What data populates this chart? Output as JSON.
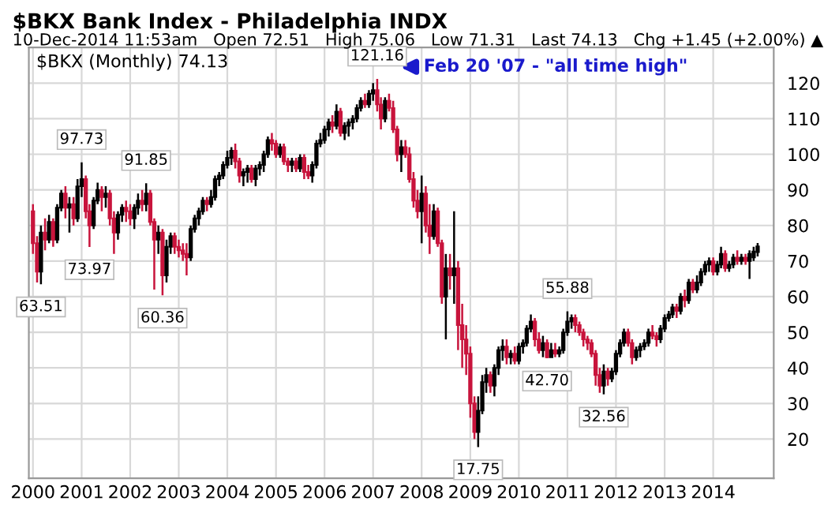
{
  "chart_data": {
    "type": "candlestick",
    "title": "$BKX Bank Index - Philadelphia INDX",
    "subtitle": "10-Dec-2014 11:53am   Open 72.51   High 75.06   Low 71.31   Last 74.13   Chg +1.45 (+2.00%) ▲",
    "annotations": [
      "$BKX (Monthly) 74.13",
      {
        "text": "63.51",
        "x": "2000-03",
        "y": 63.51
      },
      {
        "text": "97.73",
        "x": "2001-01",
        "y": 97.73
      },
      {
        "text": "73.97",
        "x": "2001-03",
        "y": 73.97
      },
      {
        "text": "91.85",
        "x": "2002-05",
        "y": 91.85
      },
      {
        "text": "60.36",
        "x": "2002-09",
        "y": 60.36
      },
      {
        "text": "121.16",
        "x": "2007-02",
        "y": 121.16
      },
      "Feb 20 '07 - \"all time high\"",
      {
        "text": "17.75",
        "x": "2009-03",
        "y": 17.75
      },
      {
        "text": "42.70",
        "x": "2010-08",
        "y": 42.7
      },
      {
        "text": "55.88",
        "x": "2011-01",
        "y": 55.88
      },
      {
        "text": "32.56",
        "x": "2011-10",
        "y": 32.56
      }
    ],
    "colors": [
      "#c8143c",
      "#c8143c",
      "#000000",
      "#c8143c",
      "#000000",
      "#c8143c",
      "#000000",
      "#000000",
      "#c8143c",
      "#000000",
      "#c8143c",
      "#000000",
      "#000000",
      "#c8143c",
      "#c8143c",
      "#000000",
      "#000000",
      "#c8143c",
      "#000000",
      "#c8143c",
      "#c8143c",
      "#000000",
      "#000000",
      "#c8143c",
      "#c8143c",
      "#000000",
      "#000000",
      "#c8143c",
      "#000000",
      "#c8143c",
      "#c8143c",
      "#000000",
      "#c8143c",
      "#000000",
      "#000000",
      "#c8143c",
      "#c8143c",
      "#c8143c",
      "#c8143c",
      "#000000",
      "#000000",
      "#000000",
      "#000000",
      "#c8143c",
      "#000000",
      "#000000",
      "#000000",
      "#000000",
      "#000000",
      "#000000",
      "#c8143c",
      "#c8143c",
      "#000000",
      "#000000",
      "#c8143c",
      "#000000",
      "#000000",
      "#000000",
      "#000000",
      "#c8143c",
      "#c8143c",
      "#000000",
      "#c8143c",
      "#c8143c",
      "#000000",
      "#c8143c",
      "#000000",
      "#c8143c",
      "#c8143c",
      "#000000",
      "#000000",
      "#000000",
      "#000000",
      "#000000",
      "#c8143c",
      "#000000",
      "#c8143c",
      "#000000",
      "#000000",
      "#000000",
      "#000000",
      "#000000",
      "#c8143c",
      "#000000",
      "#000000",
      "#c8143c",
      "#c8143c",
      "#000000",
      "#c8143c",
      "#c8143c",
      "#c8143c",
      "#000000",
      "#c8143c",
      "#c8143c",
      "#c8143c",
      "#c8143c",
      "#000000",
      "#c8143c",
      "#c8143c",
      "#000000",
      "#c8143c",
      "#c8143c",
      "#000000",
      "#c8143c",
      "#000000",
      "#c8143c",
      "#c8143c",
      "#c8143c",
      "#c8143c",
      "#c8143c",
      "#000000",
      "#000000",
      "#000000",
      "#c8143c",
      "#000000",
      "#000000",
      "#000000",
      "#c8143c",
      "#000000",
      "#c8143c",
      "#000000",
      "#000000",
      "#000000",
      "#000000",
      "#c8143c",
      "#c8143c",
      "#000000",
      "#c8143c",
      "#000000",
      "#c8143c",
      "#000000",
      "#000000",
      "#000000",
      "#000000",
      "#c8143c",
      "#c8143c",
      "#c8143c",
      "#c8143c",
      "#c8143c",
      "#c8143c",
      "#c8143c",
      "#000000",
      "#c8143c",
      "#000000",
      "#000000",
      "#000000",
      "#000000",
      "#c8143c",
      "#c8143c",
      "#000000",
      "#000000",
      "#000000",
      "#000000",
      "#c8143c",
      "#c8143c",
      "#000000",
      "#000000",
      "#000000",
      "#000000",
      "#c8143c",
      "#000000",
      "#c8143c",
      "#000000",
      "#c8143c",
      "#000000",
      "#000000",
      "#000000",
      "#000000",
      "#c8143c",
      "#000000",
      "#000000",
      "#c8143c",
      "#000000",
      "#000000",
      "#c8143c",
      "#000000",
      "#c8143c",
      "#000000",
      "#000000",
      "#000000"
    ],
    "xlim": [
      "1999-12",
      "2015-04"
    ],
    "xticks": [
      "2000",
      "2001",
      "2002",
      "2003",
      "2004",
      "2005",
      "2006",
      "2007",
      "2008",
      "2009",
      "2010",
      "2011",
      "2012",
      "2013",
      "2014"
    ],
    "ylim": [
      9,
      130
    ],
    "yticks": [
      20,
      30,
      40,
      50,
      60,
      70,
      80,
      90,
      100,
      110,
      120
    ],
    "grid": true,
    "x": [
      "2000-01",
      "2000-02",
      "2000-03",
      "2000-04",
      "2000-05",
      "2000-06",
      "2000-07",
      "2000-08",
      "2000-09",
      "2000-10",
      "2000-11",
      "2000-12",
      "2001-01",
      "2001-02",
      "2001-03",
      "2001-04",
      "2001-05",
      "2001-06",
      "2001-07",
      "2001-08",
      "2001-09",
      "2001-10",
      "2001-11",
      "2001-12",
      "2002-01",
      "2002-02",
      "2002-03",
      "2002-04",
      "2002-05",
      "2002-06",
      "2002-07",
      "2002-08",
      "2002-09",
      "2002-10",
      "2002-11",
      "2002-12",
      "2003-01",
      "2003-02",
      "2003-03",
      "2003-04",
      "2003-05",
      "2003-06",
      "2003-07",
      "2003-08",
      "2003-09",
      "2003-10",
      "2003-11",
      "2003-12",
      "2004-01",
      "2004-02",
      "2004-03",
      "2004-04",
      "2004-05",
      "2004-06",
      "2004-07",
      "2004-08",
      "2004-09",
      "2004-10",
      "2004-11",
      "2004-12",
      "2005-01",
      "2005-02",
      "2005-03",
      "2005-04",
      "2005-05",
      "2005-06",
      "2005-07",
      "2005-08",
      "2005-09",
      "2005-10",
      "2005-11",
      "2005-12",
      "2006-01",
      "2006-02",
      "2006-03",
      "2006-04",
      "2006-05",
      "2006-06",
      "2006-07",
      "2006-08",
      "2006-09",
      "2006-10",
      "2006-11",
      "2006-12",
      "2007-01",
      "2007-02",
      "2007-03",
      "2007-04",
      "2007-05",
      "2007-06",
      "2007-07",
      "2007-08",
      "2007-09",
      "2007-10",
      "2007-11",
      "2007-12",
      "2008-01",
      "2008-02",
      "2008-03",
      "2008-04",
      "2008-05",
      "2008-06",
      "2008-07",
      "2008-08",
      "2008-09",
      "2008-10",
      "2008-11",
      "2008-12",
      "2009-01",
      "2009-02",
      "2009-03",
      "2009-04",
      "2009-05",
      "2009-06",
      "2009-07",
      "2009-08",
      "2009-09",
      "2009-10",
      "2009-11",
      "2009-12",
      "2010-01",
      "2010-02",
      "2010-03",
      "2010-04",
      "2010-05",
      "2010-06",
      "2010-07",
      "2010-08",
      "2010-09",
      "2010-10",
      "2010-11",
      "2010-12",
      "2011-01",
      "2011-02",
      "2011-03",
      "2011-04",
      "2011-05",
      "2011-06",
      "2011-07",
      "2011-08",
      "2011-09",
      "2011-10",
      "2011-11",
      "2011-12",
      "2012-01",
      "2012-02",
      "2012-03",
      "2012-04",
      "2012-05",
      "2012-06",
      "2012-07",
      "2012-08",
      "2012-09",
      "2012-10",
      "2012-11",
      "2012-12",
      "2013-01",
      "2013-02",
      "2013-03",
      "2013-04",
      "2013-05",
      "2013-06",
      "2013-07",
      "2013-08",
      "2013-09",
      "2013-10",
      "2013-11",
      "2013-12",
      "2014-01",
      "2014-02",
      "2014-03",
      "2014-04",
      "2014-05",
      "2014-06",
      "2014-07",
      "2014-08",
      "2014-09",
      "2014-10",
      "2014-11",
      "2014-12"
    ],
    "ohlc": [
      [
        84,
        86,
        72,
        75
      ],
      [
        75,
        77,
        64,
        67
      ],
      [
        67,
        80,
        63.51,
        78
      ],
      [
        78,
        82,
        73,
        76
      ],
      [
        76,
        83,
        75,
        81
      ],
      [
        81,
        82,
        74,
        76
      ],
      [
        76,
        86,
        75,
        85
      ],
      [
        85,
        90,
        84,
        89
      ],
      [
        89,
        91,
        82,
        85
      ],
      [
        85,
        88,
        78,
        86
      ],
      [
        86,
        88,
        80,
        82
      ],
      [
        82,
        93,
        81,
        91
      ],
      [
        91,
        97.73,
        88,
        93
      ],
      [
        93,
        94,
        82,
        84
      ],
      [
        84,
        86,
        73.97,
        80
      ],
      [
        80,
        88,
        79,
        87
      ],
      [
        87,
        92,
        86,
        90
      ],
      [
        90,
        91,
        84,
        88
      ],
      [
        88,
        91,
        85,
        89
      ],
      [
        89,
        90,
        80,
        82
      ],
      [
        82,
        84,
        72,
        78
      ],
      [
        78,
        84,
        76,
        83
      ],
      [
        83,
        86,
        81,
        85
      ],
      [
        85,
        87,
        81,
        84
      ],
      [
        84,
        86,
        80,
        82
      ],
      [
        82,
        86,
        79,
        85
      ],
      [
        85,
        89,
        83,
        87
      ],
      [
        87,
        90,
        84,
        86
      ],
      [
        86,
        91.85,
        84,
        89
      ],
      [
        89,
        90,
        80,
        81
      ],
      [
        81,
        82,
        62,
        76
      ],
      [
        76,
        80,
        72,
        78
      ],
      [
        78,
        79,
        60.36,
        66
      ],
      [
        66,
        76,
        64,
        74
      ],
      [
        74,
        78,
        72,
        77
      ],
      [
        77,
        78,
        72,
        74
      ],
      [
        74,
        76,
        71,
        73
      ],
      [
        73,
        75,
        70,
        72
      ],
      [
        72,
        75,
        66,
        71
      ],
      [
        71,
        80,
        70,
        79
      ],
      [
        79,
        83,
        78,
        82
      ],
      [
        82,
        85,
        80,
        84
      ],
      [
        84,
        88,
        83,
        87
      ],
      [
        87,
        88,
        84,
        86
      ],
      [
        86,
        90,
        85,
        88
      ],
      [
        88,
        94,
        87,
        93
      ],
      [
        93,
        95,
        91,
        94
      ],
      [
        94,
        98,
        93,
        97
      ],
      [
        97,
        101,
        96,
        99
      ],
      [
        99,
        102,
        97,
        101
      ],
      [
        101,
        103,
        96,
        98
      ],
      [
        98,
        99,
        92,
        94
      ],
      [
        94,
        96,
        91,
        95
      ],
      [
        95,
        97,
        92,
        96
      ],
      [
        96,
        97,
        92,
        93
      ],
      [
        93,
        97,
        91,
        96
      ],
      [
        96,
        98,
        94,
        97
      ],
      [
        97,
        101,
        95,
        100
      ],
      [
        100,
        105,
        99,
        104
      ],
      [
        104,
        106,
        101,
        103
      ],
      [
        103,
        104,
        99,
        100
      ],
      [
        100,
        103,
        99,
        102
      ],
      [
        102,
        103,
        97,
        98
      ],
      [
        98,
        99,
        95,
        97
      ],
      [
        97,
        99,
        95,
        98
      ],
      [
        98,
        99,
        95,
        96
      ],
      [
        96,
        100,
        95,
        99
      ],
      [
        99,
        100,
        93,
        95
      ],
      [
        95,
        97,
        93,
        94
      ],
      [
        94,
        98,
        92,
        97
      ],
      [
        97,
        104,
        96,
        103
      ],
      [
        103,
        106,
        102,
        104
      ],
      [
        104,
        108,
        103,
        107
      ],
      [
        107,
        110,
        105,
        109
      ],
      [
        109,
        111,
        106,
        108
      ],
      [
        108,
        114,
        107,
        112
      ],
      [
        112,
        113,
        105,
        106
      ],
      [
        106,
        109,
        104,
        108
      ],
      [
        108,
        110,
        105,
        109
      ],
      [
        109,
        111,
        107,
        110
      ],
      [
        110,
        114,
        109,
        113
      ],
      [
        113,
        116,
        112,
        115
      ],
      [
        115,
        117,
        113,
        114
      ],
      [
        114,
        118,
        113,
        117
      ],
      [
        117,
        120,
        115,
        118
      ],
      [
        118,
        121.16,
        112,
        114
      ],
      [
        114,
        116,
        107,
        110
      ],
      [
        110,
        116,
        109,
        115
      ],
      [
        115,
        117,
        112,
        113
      ],
      [
        113,
        115,
        106,
        107
      ],
      [
        107,
        108,
        98,
        100
      ],
      [
        100,
        104,
        95,
        102
      ],
      [
        102,
        104,
        99,
        100
      ],
      [
        100,
        102,
        92,
        93
      ],
      [
        93,
        95,
        85,
        87
      ],
      [
        87,
        90,
        82,
        84
      ],
      [
        84,
        94,
        75,
        89
      ],
      [
        89,
        91,
        78,
        80
      ],
      [
        80,
        86,
        72,
        77
      ],
      [
        77,
        86,
        76,
        84
      ],
      [
        84,
        85,
        74,
        75
      ],
      [
        75,
        76,
        58,
        60
      ],
      [
        60,
        72,
        48,
        68
      ],
      [
        68,
        72,
        62,
        66
      ],
      [
        66,
        84,
        58,
        68
      ],
      [
        68,
        70,
        45,
        52
      ],
      [
        52,
        58,
        40,
        48
      ],
      [
        48,
        52,
        38,
        44
      ],
      [
        44,
        46,
        26,
        30
      ],
      [
        30,
        32,
        20,
        22
      ],
      [
        22,
        32,
        17.75,
        28
      ],
      [
        28,
        38,
        27,
        36
      ],
      [
        36,
        40,
        33,
        38
      ],
      [
        38,
        39,
        33,
        35
      ],
      [
        35,
        41,
        32,
        40
      ],
      [
        40,
        46,
        38,
        45
      ],
      [
        45,
        48,
        42,
        46
      ],
      [
        46,
        48,
        41,
        43
      ],
      [
        43,
        45,
        41,
        44
      ],
      [
        44,
        46,
        41,
        42
      ],
      [
        42,
        47,
        41,
        46
      ],
      [
        46,
        48,
        44,
        47
      ],
      [
        47,
        52,
        46,
        51
      ],
      [
        51,
        55,
        50,
        53
      ],
      [
        53,
        54,
        46,
        48
      ],
      [
        48,
        50,
        44,
        45
      ],
      [
        45,
        49,
        43,
        47
      ],
      [
        47,
        48,
        42.7,
        43
      ],
      [
        43,
        47,
        43,
        45
      ],
      [
        45,
        47,
        43,
        44
      ],
      [
        44,
        46,
        43,
        45
      ],
      [
        45,
        51,
        44,
        50
      ],
      [
        50,
        55.88,
        49,
        53
      ],
      [
        53,
        55,
        51,
        54
      ],
      [
        54,
        55,
        50,
        52
      ],
      [
        52,
        53,
        49,
        50
      ],
      [
        50,
        51,
        46,
        48
      ],
      [
        48,
        49,
        45,
        47
      ],
      [
        47,
        48,
        43,
        44
      ],
      [
        44,
        45,
        35,
        38
      ],
      [
        38,
        40,
        33,
        35
      ],
      [
        35,
        41,
        32.56,
        39
      ],
      [
        39,
        40,
        35,
        37
      ],
      [
        37,
        40,
        36,
        39
      ],
      [
        39,
        45,
        38,
        44
      ],
      [
        44,
        48,
        43,
        47
      ],
      [
        47,
        51,
        46,
        50
      ],
      [
        50,
        51,
        46,
        47
      ],
      [
        47,
        48,
        41,
        43
      ],
      [
        43,
        46,
        42,
        45
      ],
      [
        45,
        47,
        43,
        46
      ],
      [
        46,
        48,
        45,
        47
      ],
      [
        47,
        51,
        46,
        50
      ],
      [
        50,
        52,
        48,
        49
      ],
      [
        49,
        50,
        46,
        48
      ],
      [
        48,
        52,
        47,
        51
      ],
      [
        51,
        55,
        50,
        54
      ],
      [
        54,
        56,
        53,
        55
      ],
      [
        55,
        58,
        54,
        57
      ],
      [
        57,
        58,
        54,
        56
      ],
      [
        56,
        61,
        55,
        60
      ],
      [
        60,
        62,
        57,
        59
      ],
      [
        59,
        65,
        58,
        64
      ],
      [
        64,
        65,
        61,
        62
      ],
      [
        62,
        66,
        61,
        64
      ],
      [
        64,
        68,
        63,
        67
      ],
      [
        67,
        70,
        66,
        69
      ],
      [
        69,
        71,
        67,
        70
      ],
      [
        70,
        71,
        66,
        67
      ],
      [
        67,
        70,
        66,
        69
      ],
      [
        69,
        74,
        68,
        72
      ],
      [
        72,
        73,
        67,
        68
      ],
      [
        68,
        70,
        67,
        69
      ],
      [
        69,
        72,
        68,
        71
      ],
      [
        71,
        73,
        69,
        70
      ],
      [
        70,
        72,
        69,
        71
      ],
      [
        71,
        72,
        69,
        70
      ],
      [
        70,
        73,
        65,
        72
      ],
      [
        71,
        74,
        70,
        72.68
      ],
      [
        72.51,
        75.06,
        71.31,
        74.13
      ]
    ]
  }
}
